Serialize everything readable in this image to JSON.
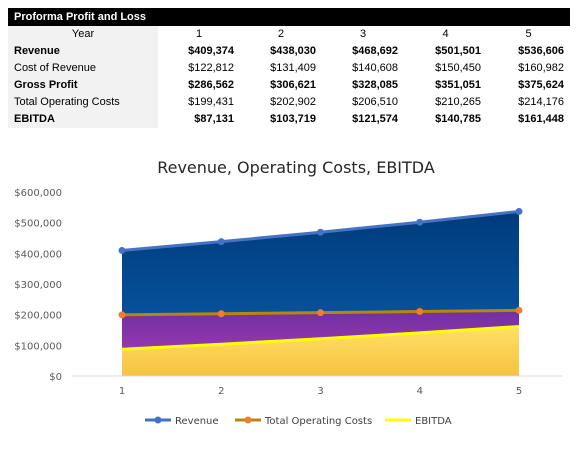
{
  "table": {
    "title": "Proforma Profit and Loss",
    "header_label": "Year",
    "years": [
      "1",
      "2",
      "3",
      "4",
      "5"
    ],
    "rows": [
      {
        "label": "Revenue",
        "bold": true,
        "values": [
          "$409,374",
          "$438,030",
          "$468,692",
          "$501,501",
          "$536,606"
        ]
      },
      {
        "label": "Cost of Revenue",
        "bold": false,
        "values": [
          "$122,812",
          "$131,409",
          "$140,608",
          "$150,450",
          "$160,982"
        ]
      },
      {
        "label": "Gross Profit",
        "bold": true,
        "values": [
          "$286,562",
          "$306,621",
          "$328,085",
          "$351,051",
          "$375,624"
        ]
      },
      {
        "label": "Total Operating Costs",
        "bold": false,
        "values": [
          "$199,431",
          "$202,902",
          "$206,510",
          "$210,265",
          "$214,176"
        ]
      },
      {
        "label": "EBITDA",
        "bold": true,
        "values": [
          "$87,131",
          "$103,719",
          "$121,574",
          "$140,785",
          "$161,448"
        ]
      }
    ]
  },
  "chart_data": {
    "type": "area",
    "title": "Revenue, Operating Costs, EBITDA",
    "xlabel": "",
    "ylabel": "",
    "categories": [
      "1",
      "2",
      "3",
      "4",
      "5"
    ],
    "ylim": [
      0,
      600000
    ],
    "yticks": [
      "$0",
      "$100,000",
      "$200,000",
      "$300,000",
      "$400,000",
      "$500,000",
      "$600,000"
    ],
    "grid": false,
    "legend_position": "bottom",
    "series": [
      {
        "name": "Revenue",
        "values": [
          409374,
          438030,
          468692,
          501501,
          536606
        ],
        "line_color": "#4472c4",
        "fill_top": "#003b7a",
        "fill_bottom": "#0a5fb0",
        "markers": true
      },
      {
        "name": "Total Operating Costs",
        "values": [
          199431,
          202902,
          206510,
          210265,
          214176
        ],
        "line_color": "#b8860b",
        "marker_color": "#ed7d31",
        "fill_top": "#7030a0",
        "fill_bottom": "#b03cb8",
        "markers": true
      },
      {
        "name": "EBITDA",
        "values": [
          87131,
          103719,
          121574,
          140785,
          161448
        ],
        "line_color": "#ffff00",
        "fill_top": "#ffe066",
        "fill_bottom": "#f5c242",
        "markers": false
      }
    ]
  }
}
